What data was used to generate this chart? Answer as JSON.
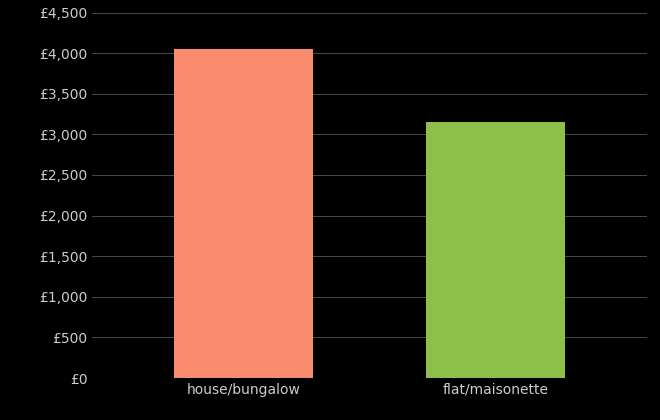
{
  "categories": [
    "house/bungalow",
    "flat/maisonette"
  ],
  "values": [
    4050,
    3150
  ],
  "bar_colors": [
    "#FA8C6E",
    "#8DC04A"
  ],
  "background_color": "#000000",
  "text_color": "#cccccc",
  "grid_color": "#555555",
  "ylim": [
    0,
    4500
  ],
  "yticks": [
    0,
    500,
    1000,
    1500,
    2000,
    2500,
    3000,
    3500,
    4000,
    4500
  ],
  "ytick_labels": [
    "£0",
    "£500",
    "£1,000",
    "£1,500",
    "£2,000",
    "£2,500",
    "£3,000",
    "£3,500",
    "£4,000",
    "£4,500"
  ],
  "tick_fontsize": 10,
  "bar_width": 0.55
}
